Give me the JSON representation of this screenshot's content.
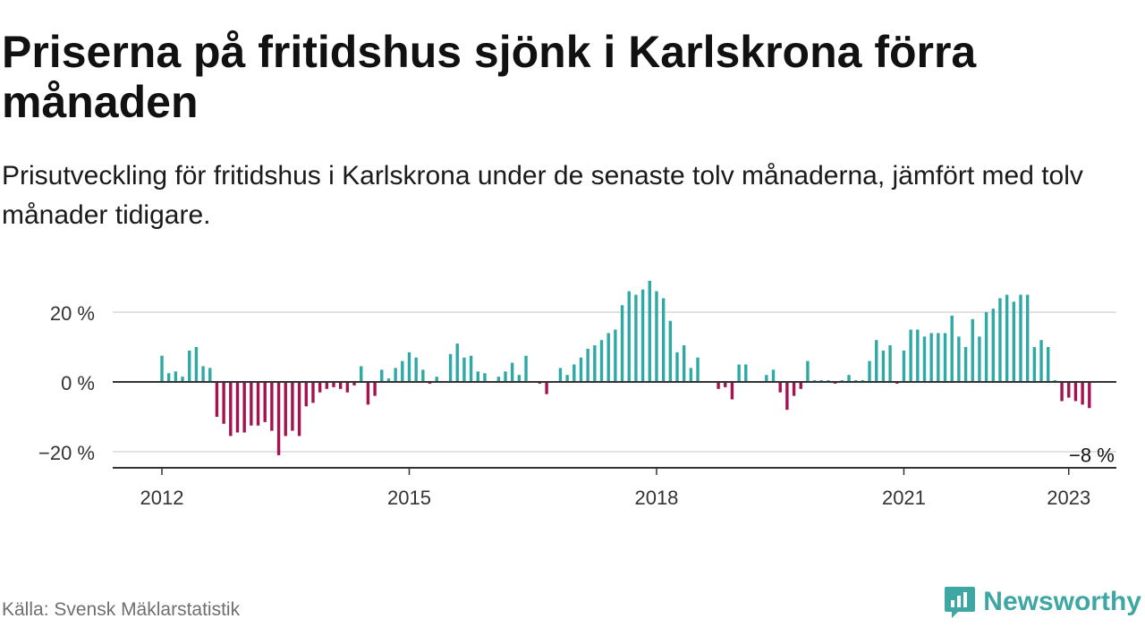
{
  "header": {
    "title": "Priserna på fritidshus sjönk i Karlskrona förra månaden",
    "subtitle": "Prisutveckling för fritidshus i Karlskrona under de senaste tolv månaderna, jämfört med tolv månader tidigare."
  },
  "footer": {
    "source": "Källa: Svensk Mäklarstatistik",
    "brand": "Newsworthy",
    "brand_icon": "newsworthy-logo-icon"
  },
  "colors": {
    "positive": "#2ea9a5",
    "negative": "#a3134f",
    "grid": "#d9d9d9",
    "zero_line": "#333333",
    "brand": "#3fa7a3"
  },
  "chart_data": {
    "type": "bar",
    "x_start": "2012-01",
    "x_ticks": [
      "2012",
      "2015",
      "2018",
      "2021",
      "2023"
    ],
    "y_ticks": [
      "20 %",
      "0 %",
      "−20 %"
    ],
    "y_tick_values": [
      20,
      0,
      -20
    ],
    "ylim": [
      -25,
      30
    ],
    "grid": true,
    "annotation": "−8 %",
    "values": [
      7.5,
      2.5,
      3,
      1.5,
      9,
      10,
      4.5,
      4,
      -10,
      -12,
      -15.5,
      -14.5,
      -14.5,
      -12.5,
      -12.5,
      -11.5,
      -14,
      -21,
      -15.5,
      -14,
      -15.5,
      -7,
      -6,
      -3,
      -2,
      -1.5,
      -2,
      -3,
      -1,
      4.5,
      -6.5,
      -4,
      3.5,
      1,
      4,
      6,
      8.5,
      7,
      3.5,
      -0.5,
      1.5,
      0,
      8,
      11,
      7,
      7.5,
      3,
      2.5,
      0,
      1.5,
      3,
      5.5,
      2,
      7.5,
      0,
      -0.5,
      -3.5,
      0,
      4,
      2,
      5,
      7,
      9.5,
      10.5,
      12,
      14,
      15,
      22,
      26,
      25,
      26.5,
      29,
      26,
      24,
      17.5,
      8.5,
      10.5,
      4,
      7,
      0,
      0,
      -2,
      -1.5,
      -5,
      5,
      5,
      0,
      0,
      2,
      3.5,
      -3,
      -8,
      -4,
      -2,
      6,
      0.5,
      0.5,
      0.5,
      -0.5,
      0.5,
      2,
      0.5,
      0.5,
      6,
      12,
      9,
      10.5,
      -0.5,
      9,
      15,
      15,
      13,
      14,
      14,
      14,
      19,
      13,
      10,
      18,
      13,
      20,
      21,
      24,
      25,
      23,
      25,
      25,
      10,
      12,
      10,
      0.5,
      -5.5,
      -4.5,
      -5.5,
      -6.5,
      -7.5
    ]
  }
}
